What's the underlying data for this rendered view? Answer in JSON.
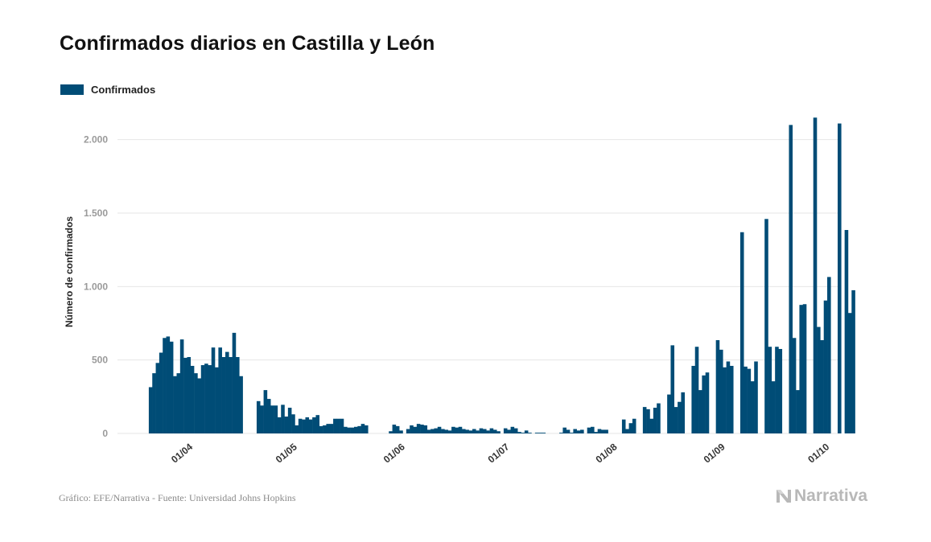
{
  "header": {
    "title": "Confirmados diarios en Castilla y León"
  },
  "footer": {
    "source": "Gráfico: EFE/Narrativa - Fuente: Universidad Johns Hopkins",
    "brand": "Narrativa",
    "brand_icon": "narrativa-logo-icon"
  },
  "colors": {
    "bar": "#004c76",
    "grid": "#e6e6e6",
    "tick": "#9a9a9a"
  },
  "chart_data": {
    "type": "bar",
    "title": "Confirmados diarios en Castilla y León",
    "xlabel": "",
    "ylabel": "Número de confirmados",
    "legend": {
      "position": "top-left",
      "entries": [
        "Confirmados"
      ]
    },
    "grid": true,
    "ylim": [
      0,
      2250
    ],
    "yticks": [
      0,
      500,
      1000,
      1500,
      2000
    ],
    "ytick_labels": [
      "0",
      "500",
      "1.000",
      "1.500",
      "2.000"
    ],
    "x_start": "2020-03-13",
    "x_end": "2020-10-06",
    "xticks": [
      {
        "date": "2020-04-01",
        "label": "01/04"
      },
      {
        "date": "2020-05-01",
        "label": "01/05"
      },
      {
        "date": "2020-06-01",
        "label": "01/06"
      },
      {
        "date": "2020-07-01",
        "label": "01/07"
      },
      {
        "date": "2020-08-01",
        "label": "01/08"
      },
      {
        "date": "2020-09-01",
        "label": "01/09"
      },
      {
        "date": "2020-10-01",
        "label": "01/10"
      }
    ],
    "series": [
      {
        "name": "Confirmados",
        "start_date": "2020-03-22",
        "values": [
          315,
          410,
          480,
          550,
          650,
          660,
          625,
          390,
          410,
          640,
          515,
          520,
          460,
          410,
          375,
          465,
          475,
          465,
          585,
          450,
          585,
          520,
          555,
          520,
          685,
          520,
          390,
          0,
          0,
          0,
          0,
          220,
          190,
          295,
          235,
          190,
          190,
          110,
          195,
          115,
          175,
          130,
          55,
          100,
          95,
          110,
          95,
          110,
          125,
          50,
          55,
          65,
          65,
          100,
          100,
          100,
          45,
          40,
          40,
          45,
          50,
          65,
          55,
          0,
          0,
          0,
          0,
          0,
          0,
          15,
          60,
          50,
          20,
          0,
          30,
          55,
          45,
          65,
          60,
          55,
          25,
          30,
          35,
          45,
          30,
          25,
          20,
          45,
          40,
          45,
          30,
          25,
          20,
          30,
          20,
          35,
          30,
          20,
          35,
          25,
          15,
          0,
          35,
          25,
          45,
          35,
          10,
          5,
          20,
          5,
          0,
          5,
          5,
          5,
          0,
          0,
          0,
          0,
          5,
          40,
          25,
          5,
          30,
          20,
          25,
          0,
          40,
          45,
          10,
          30,
          25,
          25,
          0,
          0,
          0,
          0,
          95,
          30,
          70,
          100,
          0,
          0,
          180,
          165,
          100,
          175,
          205,
          0,
          0,
          265,
          600,
          180,
          215,
          280,
          0,
          0,
          460,
          590,
          295,
          395,
          415,
          0,
          0,
          635,
          570,
          450,
          490,
          460,
          0,
          0,
          1370,
          455,
          440,
          355,
          490,
          0,
          0,
          1460,
          590,
          355,
          590,
          575,
          0,
          0,
          2100,
          650,
          295,
          875,
          880,
          0,
          0,
          2150,
          725,
          635,
          905,
          1065,
          0,
          0,
          2110,
          0,
          1385,
          820,
          975
        ]
      }
    ]
  }
}
